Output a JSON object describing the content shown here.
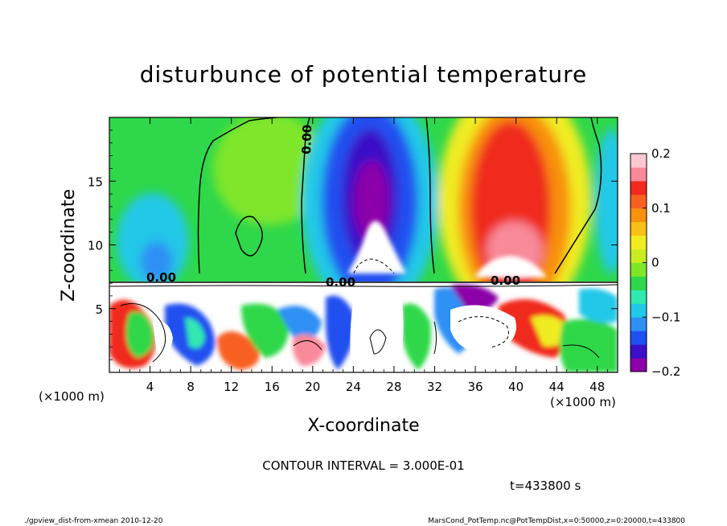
{
  "chart_data": {
    "type": "heatmap",
    "title": "disturbunce of potential temperature",
    "xlabel": "X-coordinate",
    "ylabel": "Z-coordinate",
    "x_unit_left": "(×1000 m)",
    "x_unit_right": "(×1000 m)",
    "xlim": [
      0,
      50
    ],
    "ylim": [
      0,
      20
    ],
    "x_ticks": [
      "4",
      "8",
      "12",
      "16",
      "20",
      "24",
      "28",
      "32",
      "36",
      "40",
      "44",
      "48"
    ],
    "x_tick_values": [
      4,
      8,
      12,
      16,
      20,
      24,
      28,
      32,
      36,
      40,
      44,
      48
    ],
    "y_ticks": [
      "5",
      "10",
      "15"
    ],
    "y_tick_values": [
      5,
      10,
      15
    ],
    "colorbar": {
      "min": -0.2,
      "max": 0.2,
      "ticks": [
        "0.2",
        "0.1",
        "0",
        "−0.1",
        "−0.2"
      ],
      "tick_values": [
        0.2,
        0.1,
        0,
        -0.1,
        -0.2
      ],
      "colors": [
        "#8b00a8",
        "#3a10c8",
        "#2050f0",
        "#2f8ff5",
        "#21c8e8",
        "#30e8b0",
        "#2ed84a",
        "#7fe62a",
        "#c8ec20",
        "#f0ec20",
        "#f8c018",
        "#f89010",
        "#f86020",
        "#f02a1e",
        "#f88a9a",
        "#fbc8d2"
      ]
    },
    "contour_labels": [
      "0.00",
      "0.00",
      "0.00",
      "0.00"
    ],
    "contour_interval_text": "CONTOUR INTERVAL = 3.000E-01",
    "time_text": "t=433800 s"
  },
  "footer": {
    "left": "./gpview_dist-from-xmean  2010-12-20",
    "right": "MarsCond_PotTemp.nc@PotTempDist,x=0:50000,z=0:20000,t=433800"
  }
}
